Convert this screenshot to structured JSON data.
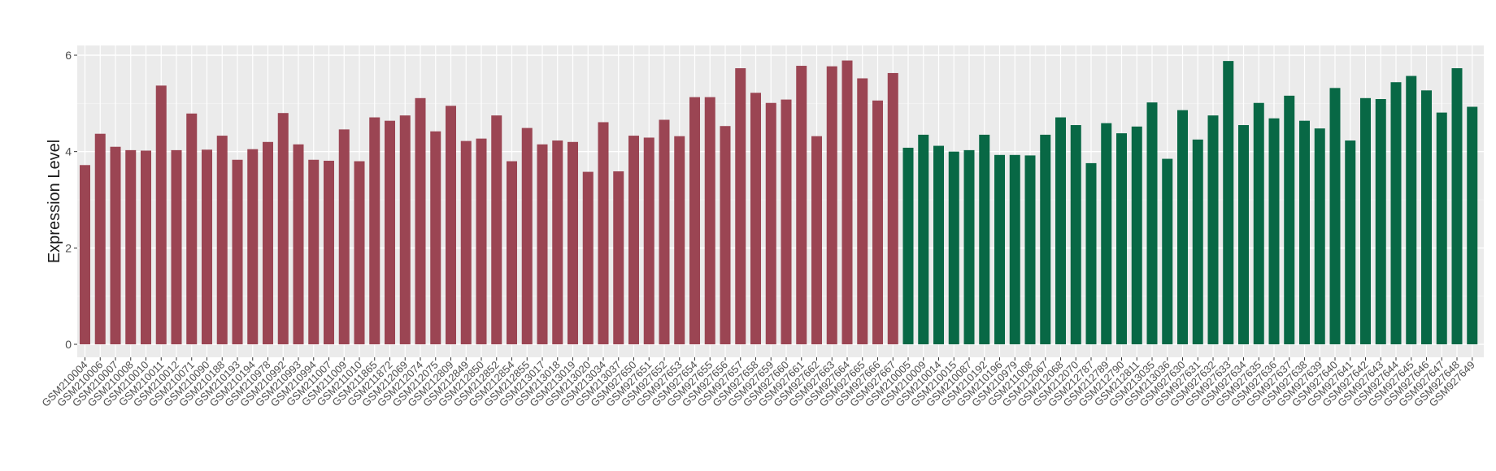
{
  "chart_data": {
    "type": "bar",
    "title": "",
    "xlabel": "",
    "ylabel": "Expression Level",
    "ylim": [
      0,
      6.2
    ],
    "yticks": [
      0,
      2,
      4,
      6
    ],
    "grid": true,
    "background": "#ebebeb",
    "colors": {
      "group1": "#9b4553",
      "group2": "#086845"
    },
    "categories": [
      "GSM210004",
      "GSM210006",
      "GSM210007",
      "GSM210008",
      "GSM210010",
      "GSM210011",
      "GSM210012",
      "GSM210071",
      "GSM210090",
      "GSM210188",
      "GSM210193",
      "GSM210194",
      "GSM210978",
      "GSM210992",
      "GSM210993",
      "GSM210994",
      "GSM211007",
      "GSM211009",
      "GSM211010",
      "GSM211865",
      "GSM211872",
      "GSM212069",
      "GSM212074",
      "GSM212075",
      "GSM212809",
      "GSM212849",
      "GSM212850",
      "GSM212852",
      "GSM212854",
      "GSM212855",
      "GSM213017",
      "GSM213018",
      "GSM213019",
      "GSM213020",
      "GSM213034",
      "GSM213037",
      "GSM927650",
      "GSM927651",
      "GSM927652",
      "GSM927653",
      "GSM927654",
      "GSM927655",
      "GSM927656",
      "GSM927657",
      "GSM927658",
      "GSM927659",
      "GSM927660",
      "GSM927661",
      "GSM927662",
      "GSM927663",
      "GSM927664",
      "GSM927665",
      "GSM927666",
      "GSM927667",
      "GSM210005",
      "GSM210009",
      "GSM210014",
      "GSM210015",
      "GSM210087",
      "GSM210192",
      "GSM210196",
      "GSM210979",
      "GSM211008",
      "GSM212067",
      "GSM212068",
      "GSM212070",
      "GSM212787",
      "GSM212789",
      "GSM212790",
      "GSM212811",
      "GSM213035",
      "GSM213036",
      "GSM927630",
      "GSM927631",
      "GSM927632",
      "GSM927633",
      "GSM927634",
      "GSM927635",
      "GSM927636",
      "GSM927637",
      "GSM927638",
      "GSM927639",
      "GSM927640",
      "GSM927641",
      "GSM927642",
      "GSM927643",
      "GSM927644",
      "GSM927645",
      "GSM927646",
      "GSM927647",
      "GSM927648",
      "GSM927649"
    ],
    "values": [
      3.72,
      4.37,
      4.1,
      4.03,
      4.02,
      5.37,
      4.03,
      4.79,
      4.04,
      4.33,
      3.83,
      4.05,
      4.2,
      4.8,
      4.15,
      3.83,
      3.81,
      4.46,
      3.8,
      4.71,
      4.64,
      4.75,
      5.11,
      4.42,
      4.95,
      4.22,
      4.27,
      4.75,
      3.8,
      4.49,
      4.15,
      4.23,
      4.2,
      3.58,
      4.61,
      3.59,
      4.33,
      4.29,
      4.66,
      4.32,
      5.13,
      5.13,
      4.53,
      5.73,
      5.22,
      5.01,
      5.08,
      5.78,
      4.32,
      5.77,
      5.89,
      5.52,
      5.06,
      5.63,
      4.08,
      4.35,
      4.12,
      4.0,
      4.03,
      4.35,
      3.93,
      3.93,
      3.92,
      4.35,
      4.71,
      4.55,
      3.76,
      4.59,
      4.38,
      4.52,
      5.02,
      3.85,
      4.86,
      4.25,
      4.75,
      5.88,
      4.55,
      5.01,
      4.69,
      5.16,
      4.64,
      4.48,
      5.32,
      4.23,
      5.11,
      5.09,
      5.44,
      5.57,
      5.27,
      4.81,
      5.73,
      4.93
    ],
    "group_sizes": [
      54,
      38
    ]
  }
}
